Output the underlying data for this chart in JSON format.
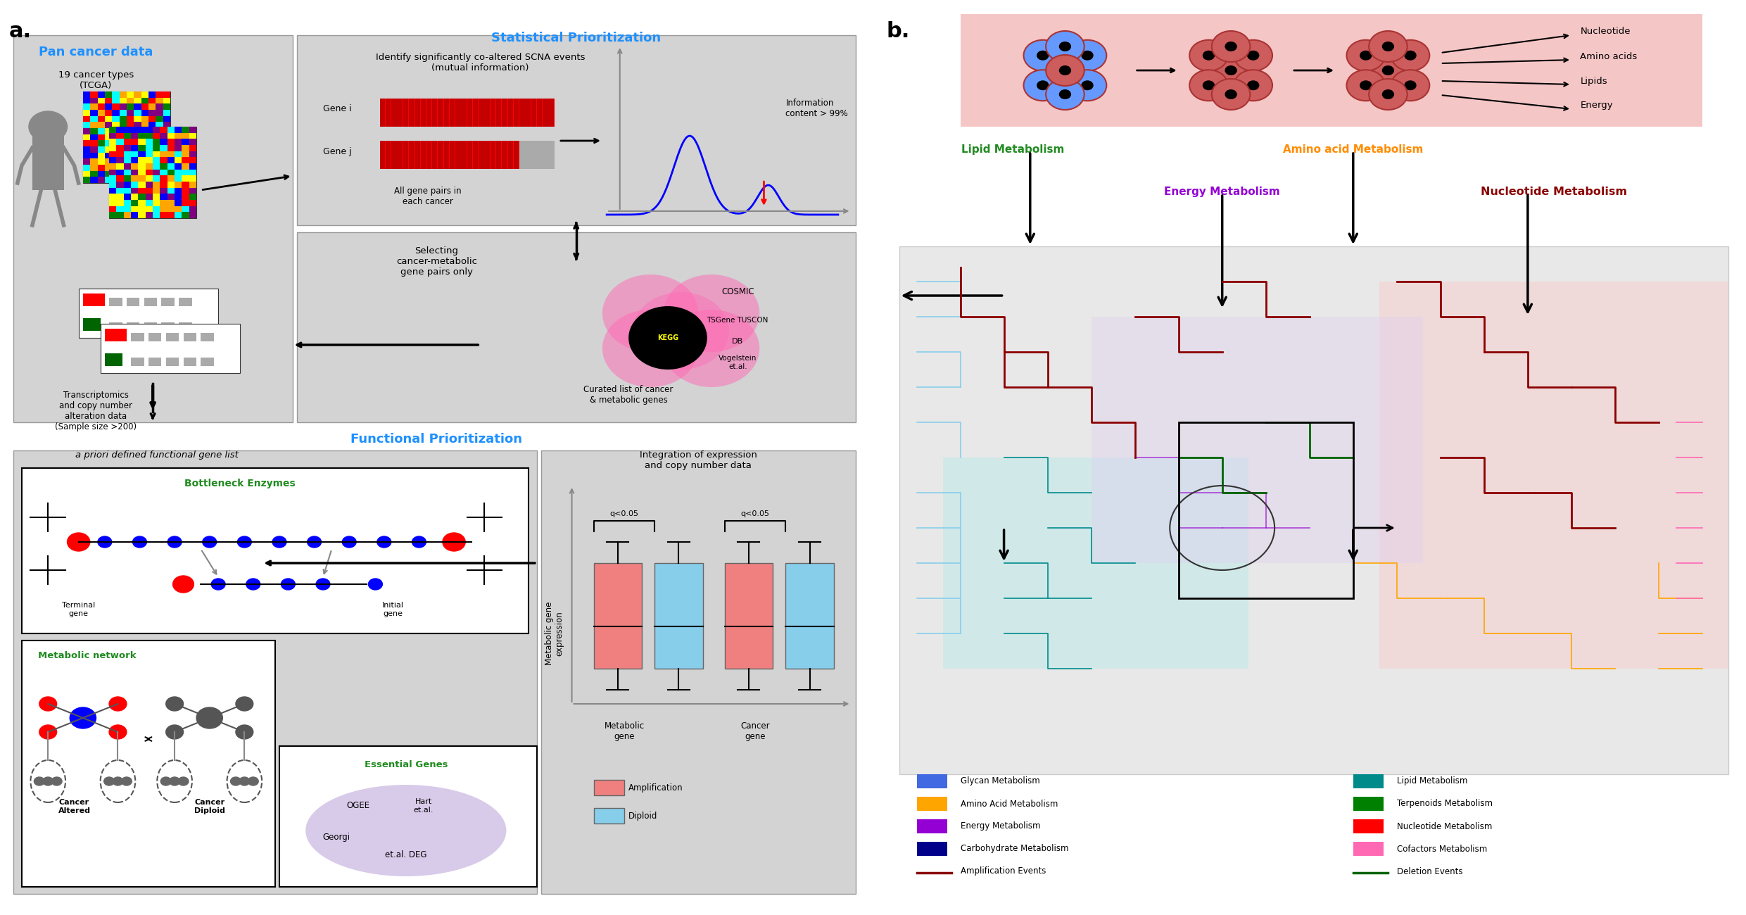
{
  "fig_width": 24.81,
  "fig_height": 13.0,
  "bg_color": "#ffffff",
  "panel_a": {
    "label": "a.",
    "label_color": "#000000",
    "title_pan_cancer": "Pan cancer data",
    "title_stat_prior": "Statistical Prioritization",
    "title_func_prior": "Functional Prioritization",
    "header_color": "#1e90ff",
    "box1_bg": "#d3d3d3",
    "box2_bg": "#d3d3d3",
    "box3_bg": "#d3d3d3",
    "text_19_cancer": "19 cancer types\n(TCGA)",
    "text_transcriptomics": "Transcriptomics\nand copy number\nalteration data\n(Sample size >200)",
    "text_identify": "Identify significantly co-altered SCNA events\n(mutual information)",
    "text_gene_i": "Gene i",
    "text_gene_j": "Gene j",
    "text_all_gene": "All gene pairs in\neach cancer",
    "text_info_content": "Information\ncontent > 99%",
    "text_selecting": "Selecting\ncancer-metabolic\ngene pairs only",
    "text_cosmic": "COSMIC",
    "text_tsgene": "TSGene TUSCON",
    "text_db": "DB",
    "text_vogelstein": "Vogelstein\net.al.",
    "text_curated": "Curated list of cancer\n& metabolic genes",
    "text_apriori": "a priori defined functional gene list",
    "text_bottleneck": "Bottleneck Enzymes",
    "text_terminal": "Terminal\ngene",
    "text_initial": "Initial\ngene",
    "text_met_network": "Metabolic network",
    "text_essential": "Essential Genes",
    "text_ogee": "OGEE",
    "text_georgi": "Georgi",
    "text_hart": "Hart\net.al.",
    "text_etalDEG": "et.al. DEG",
    "text_cancer_altered": "Cancer\nAltered",
    "text_cancer_diploid": "Cancer\nDiploid",
    "text_integration": "Integration of expression\nand copy number data",
    "text_q005_1": "q<0.05",
    "text_q005_2": "q<0.05",
    "text_metabolic_gene_expr": "Metabolic gene\nexpression",
    "text_metabolic_gene": "Metabolic\ngene",
    "text_cancer_gene": "Cancer\ngene",
    "text_amplification": "Amplification",
    "text_diploid": "Diploid",
    "amp_color": "#f08080",
    "diploid_color": "#87ceeb"
  },
  "panel_b": {
    "label": "b.",
    "title_lipid": "Lipid Metabolism",
    "title_amino": "Amino acid Metabolism",
    "title_energy": "Energy Metabolism",
    "title_nucleotide": "Nucleotide Metabolism",
    "lipid_color": "#228b22",
    "amino_color": "#ff8c00",
    "energy_color": "#9400d3",
    "nucleotide_color": "#8b0000",
    "top_box_bg": "#f5c6c6",
    "legend_items": [
      {
        "label": "Glycan Metabolism",
        "color": "#4169e1"
      },
      {
        "label": "Amino Acid Metabolism",
        "color": "#ffa500"
      },
      {
        "label": "Energy Metabolism",
        "color": "#9400d3"
      },
      {
        "label": "Carbohydrate Metabolism",
        "color": "#00008b"
      },
      {
        "label": "Amplification Events",
        "color": "#8b0000"
      },
      {
        "label": "Lipid Metabolism",
        "color": "#008b8b"
      },
      {
        "label": "Terpenoids Metabolism",
        "color": "#008000"
      },
      {
        "label": "Nucleotide Metabolism",
        "color": "#ff0000"
      },
      {
        "label": "Cofactors Metabolism",
        "color": "#ff69b4"
      },
      {
        "label": "Deletion Events",
        "color": "#006400"
      }
    ],
    "nucleotide_text": "Nucleotide",
    "amino_acids_text": "Amino acids",
    "lipids_text": "Lipids",
    "energy_text": "Energy"
  }
}
